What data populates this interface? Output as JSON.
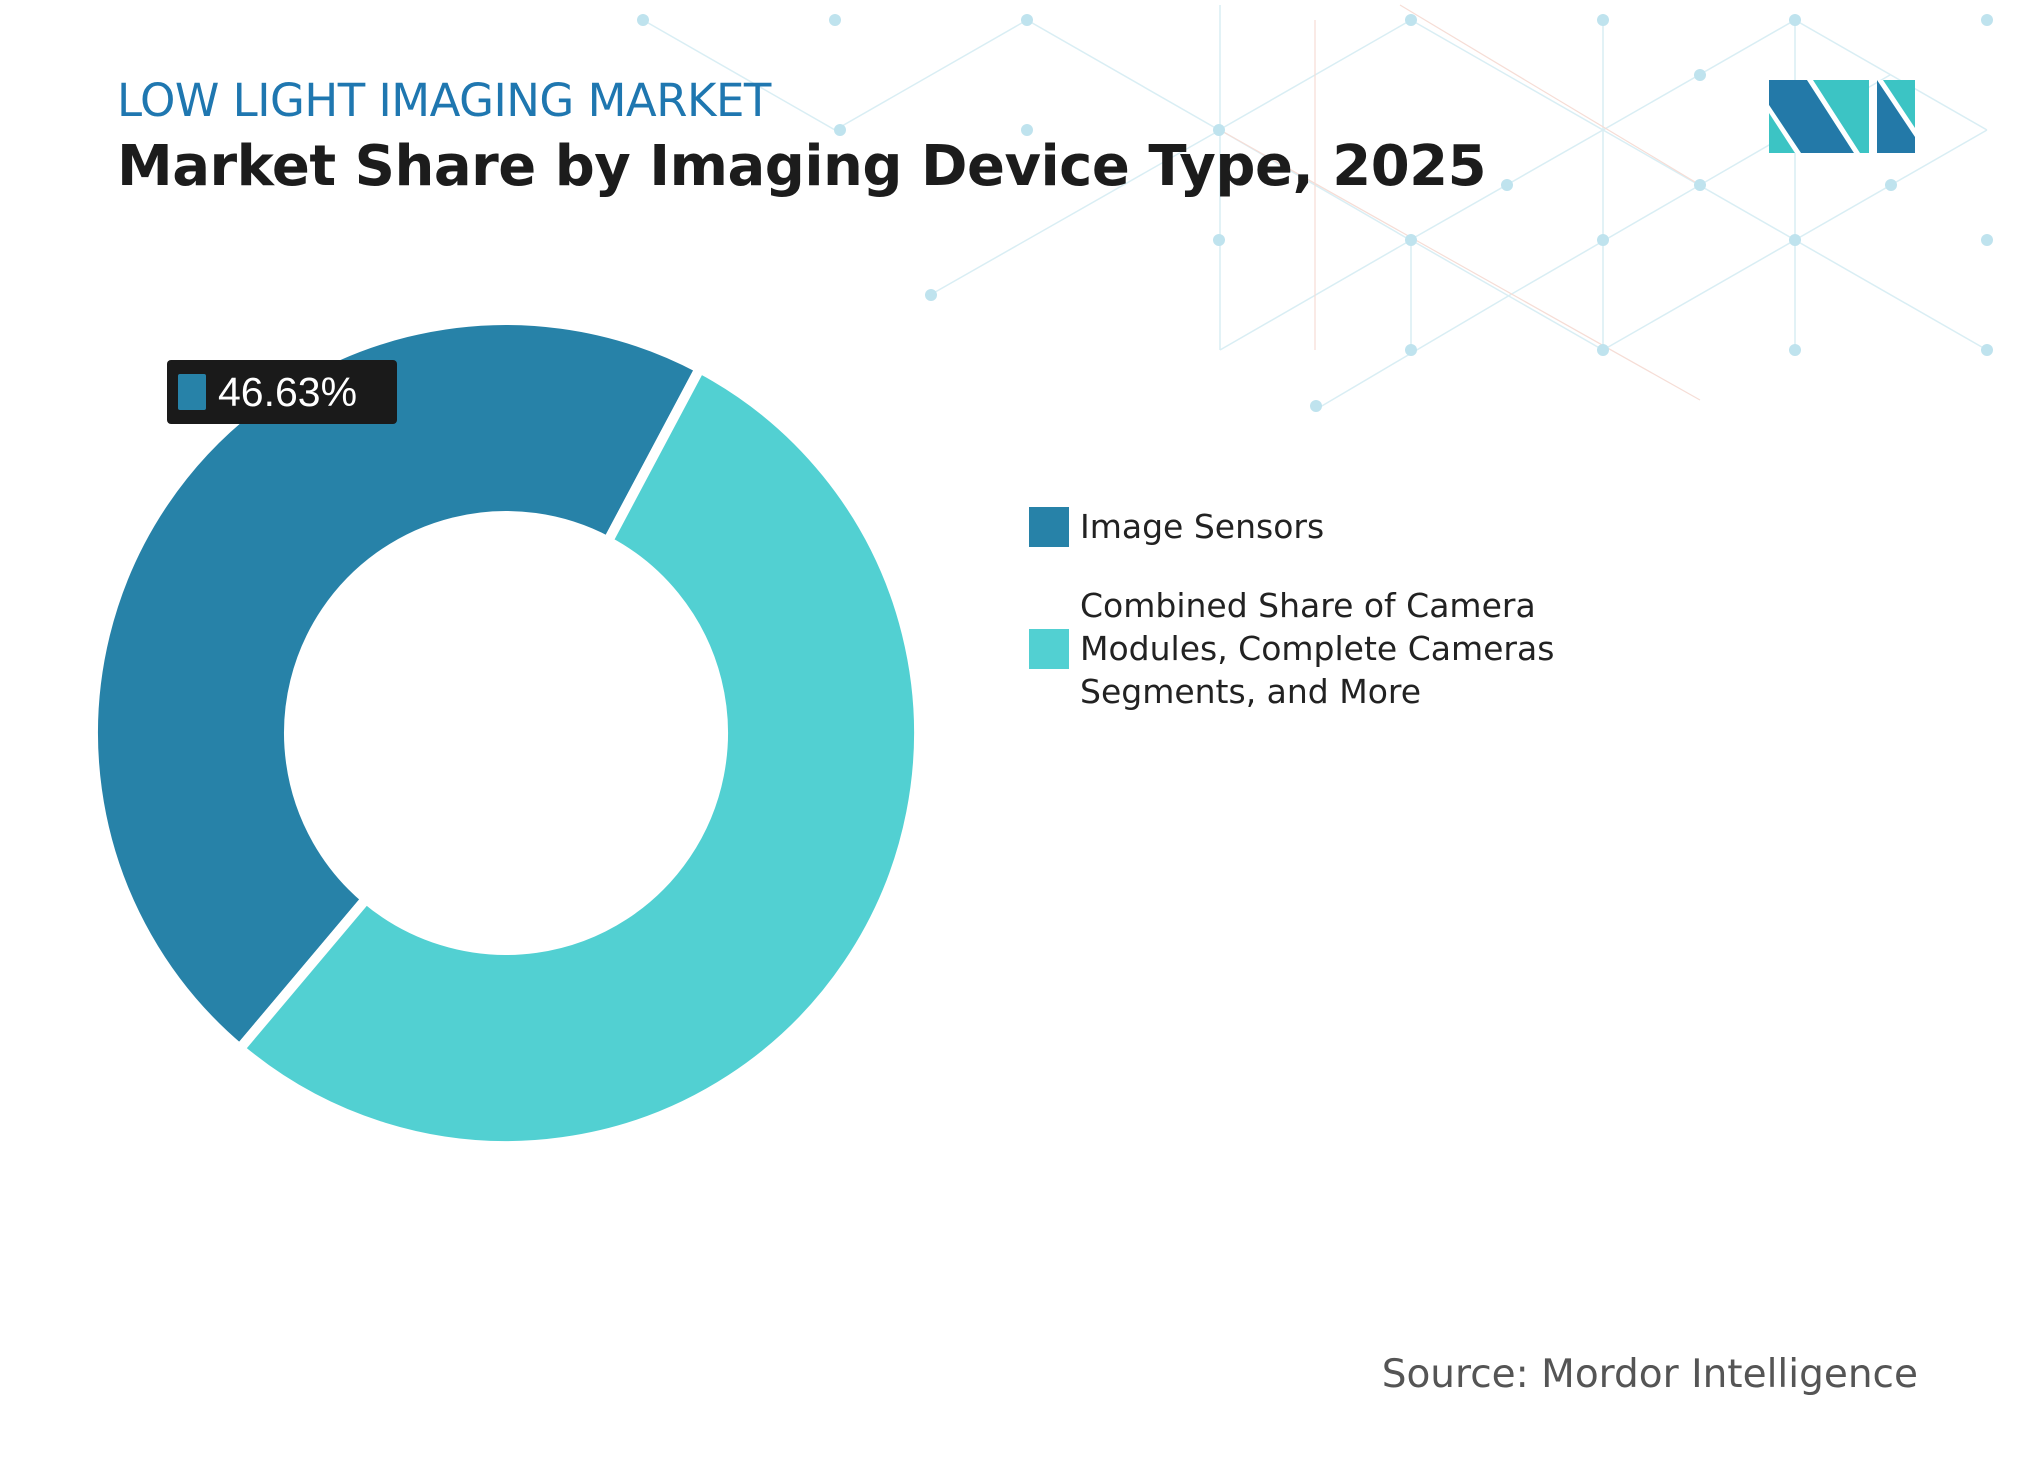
{
  "header": {
    "subtitle": "LOW LIGHT IMAGING MARKET",
    "title": "Market Share by Imaging Device Type, 2025"
  },
  "logo": {
    "name": "mordor-intelligence-logo",
    "colors": [
      "#2379a8",
      "#3cc4c4"
    ]
  },
  "chart_data": {
    "type": "pie",
    "variant": "donut",
    "title": "Market Share by Imaging Device Type, 2025",
    "series": [
      {
        "name": "Image Sensors",
        "value": 46.63,
        "color": "#2782a8"
      },
      {
        "name": "Combined Share of Camera Modules, Complete Cameras Segments, and More",
        "value": 53.37,
        "color": "#52d0d2"
      }
    ],
    "data_labels": [
      {
        "series": "Image Sensors",
        "text": "46.63%"
      }
    ],
    "legend_position": "right"
  },
  "footer": {
    "source": "Source: Mordor Intelligence"
  }
}
